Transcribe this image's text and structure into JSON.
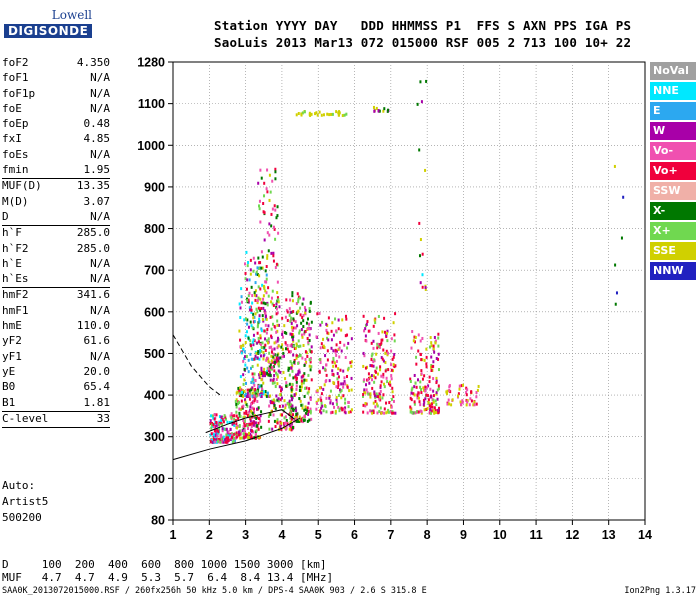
{
  "logo": {
    "line1": "Lowell",
    "line2": "DIGISONDE"
  },
  "header": {
    "row1": "Station YYYY DAY   DDD HHMMSS P1  FFS S AXN PPS IGA PS",
    "row2": "SaoLuis 2013 Mar13 072 015000 RSF 005 2 713 100 10+ 22"
  },
  "params": [
    {
      "name": "foF2",
      "value": "4.350"
    },
    {
      "name": "foF1",
      "value": "N/A"
    },
    {
      "name": "foF1p",
      "value": "N/A"
    },
    {
      "name": "foE",
      "value": "N/A"
    },
    {
      "name": "foEp",
      "value": "0.48"
    },
    {
      "name": "fxI",
      "value": "4.85"
    },
    {
      "name": "foEs",
      "value": "N/A"
    },
    {
      "name": "fmin",
      "value": "1.95",
      "sep": true
    },
    {
      "name": "MUF(D)",
      "value": "13.35"
    },
    {
      "name": "M(D)",
      "value": "3.07"
    },
    {
      "name": "D",
      "value": "N/A",
      "sep": true
    },
    {
      "name": "h`F",
      "value": "285.0"
    },
    {
      "name": "h`F2",
      "value": "285.0"
    },
    {
      "name": "h`E",
      "value": "N/A"
    },
    {
      "name": "h`Es",
      "value": "N/A",
      "sep": true
    },
    {
      "name": "hmF2",
      "value": "341.6"
    },
    {
      "name": "hmF1",
      "value": "N/A"
    },
    {
      "name": "hmE",
      "value": "110.0"
    },
    {
      "name": "yF2",
      "value": "61.6"
    },
    {
      "name": "yF1",
      "value": "N/A"
    },
    {
      "name": "yE",
      "value": "20.0"
    },
    {
      "name": "B0",
      "value": "65.4"
    },
    {
      "name": "B1",
      "value": "1.81",
      "sep": true
    },
    {
      "name": "C-level",
      "value": "33",
      "sep": true
    }
  ],
  "auto": [
    "Auto:",
    "Artist5",
    "500200"
  ],
  "legend": [
    {
      "label": "NoVal",
      "color": "#a0a0a0"
    },
    {
      "label": "NNE",
      "color": "#00e8ff"
    },
    {
      "label": "E",
      "color": "#2ca8f0"
    },
    {
      "label": "W",
      "color": "#a800a8"
    },
    {
      "label": "Vo-",
      "color": "#f050b0"
    },
    {
      "label": "Vo+",
      "color": "#f0003c"
    },
    {
      "label": "SSW",
      "color": "#f0b0a8"
    },
    {
      "label": "X-",
      "color": "#007800"
    },
    {
      "label": "X+",
      "color": "#70d850"
    },
    {
      "label": "SSE",
      "color": "#d0d000"
    },
    {
      "label": "NNW",
      "color": "#2020c0"
    }
  ],
  "footer": {
    "d_row": "D     100  200  400  600  800 1000 1500 3000 [km]",
    "muf_row": "MUF   4.7  4.7  4.9  5.3  5.7  6.4  8.4 13.4 [MHz]",
    "bottom": "SAA0K_2013072015000.RSF / 260fx256h 50 kHz 5.0 km / DPS-4 SAA0K 903 / 2.6 S 315.8 E",
    "version": "Ion2Png 1.3.17"
  },
  "chart_data": {
    "type": "scatter",
    "x_ticks": [
      1,
      2,
      3,
      4,
      5,
      6,
      7,
      8,
      9,
      10,
      11,
      12,
      13,
      14
    ],
    "y_ticks": [
      80,
      200,
      300,
      400,
      500,
      600,
      700,
      800,
      900,
      1000,
      1100,
      1280
    ],
    "xlim": [
      1,
      14
    ],
    "ylim": [
      80,
      1280
    ],
    "grid": true,
    "legend_position": "right",
    "x_unit": "MHz",
    "y_unit": "km",
    "clusters": [
      {
        "fmin": 2.0,
        "fmax": 2.7,
        "hmin": 290,
        "hmax": 360,
        "n": 180,
        "colors": [
          "Vo+",
          "Vo-",
          "Vo+",
          "X+",
          "W",
          "NNE"
        ]
      },
      {
        "fmin": 2.7,
        "fmax": 3.4,
        "hmin": 300,
        "hmax": 420,
        "n": 200,
        "colors": [
          "Vo+",
          "Vo+",
          "Vo-",
          "W",
          "X+",
          "SSE",
          "X-"
        ]
      },
      {
        "fmin": 2.8,
        "fmax": 3.6,
        "hmin": 400,
        "hmax": 750,
        "n": 260,
        "colors": [
          "W",
          "Vo+",
          "Vo-",
          "SSE",
          "X+",
          "X-",
          "NNE",
          "E"
        ]
      },
      {
        "fmin": 3.3,
        "fmax": 3.9,
        "hmin": 450,
        "hmax": 950,
        "n": 160,
        "colors": [
          "Vo+",
          "W",
          "X+",
          "SSE",
          "X-",
          "Vo-"
        ]
      },
      {
        "fmin": 3.6,
        "fmax": 4.3,
        "hmin": 320,
        "hmax": 640,
        "n": 220,
        "colors": [
          "Vo+",
          "Vo-",
          "X+",
          "SSE",
          "W",
          "X-"
        ]
      },
      {
        "fmin": 4.2,
        "fmax": 4.8,
        "hmin": 340,
        "hmax": 650,
        "n": 230,
        "colors": [
          "SSE",
          "X+",
          "Vo+",
          "X-",
          "W",
          "Vo-"
        ]
      },
      {
        "fmin": 4.9,
        "fmax": 5.9,
        "hmin": 360,
        "hmax": 600,
        "n": 180,
        "colors": [
          "SSE",
          "X+",
          "Vo+",
          "Vo-",
          "W"
        ]
      },
      {
        "fmin": 6.2,
        "fmax": 7.1,
        "hmin": 360,
        "hmax": 600,
        "n": 190,
        "colors": [
          "Vo+",
          "Vo+",
          "SSE",
          "X+",
          "W",
          "Vo-"
        ]
      },
      {
        "fmin": 7.5,
        "fmax": 8.3,
        "hmin": 360,
        "hmax": 560,
        "n": 170,
        "colors": [
          "Vo+",
          "Vo+",
          "W",
          "SSE",
          "X+",
          "Vo-"
        ]
      },
      {
        "fmin": 8.5,
        "fmax": 9.4,
        "hmin": 380,
        "hmax": 430,
        "n": 50,
        "colors": [
          "Vo+",
          "Vo-",
          "SSE"
        ]
      },
      {
        "fmin": 4.3,
        "fmax": 5.8,
        "hmin": 1075,
        "hmax": 1085,
        "n": 30,
        "colors": [
          "SSE",
          "SSE",
          "X+"
        ]
      },
      {
        "fmin": 6.5,
        "fmax": 7.0,
        "hmin": 1085,
        "hmax": 1095,
        "n": 14,
        "colors": [
          "SSE",
          "X-",
          "W"
        ]
      },
      {
        "fmin": 7.7,
        "fmax": 8.0,
        "hmin": 650,
        "hmax": 1260,
        "n": 16,
        "colors": [
          "SSE",
          "X-",
          "W",
          "NNE",
          "Vo+"
        ]
      },
      {
        "fmin": 13.1,
        "fmax": 13.4,
        "hmin": 600,
        "hmax": 1140,
        "n": 6,
        "colors": [
          "NNW",
          "X-",
          "SSE"
        ]
      }
    ],
    "trace_solid": [
      [
        1,
        245
      ],
      [
        2,
        270
      ],
      [
        3,
        290
      ],
      [
        4,
        320
      ],
      [
        4.5,
        345
      ]
    ],
    "trace_profile": [
      [
        1.9,
        310
      ],
      [
        2.5,
        330
      ],
      [
        3,
        345
      ],
      [
        3.5,
        355
      ],
      [
        4,
        365
      ],
      [
        4.35,
        342
      ]
    ],
    "trace_dashed": [
      [
        1,
        545
      ],
      [
        1.5,
        470
      ],
      [
        2,
        420
      ],
      [
        2.3,
        400
      ]
    ]
  }
}
